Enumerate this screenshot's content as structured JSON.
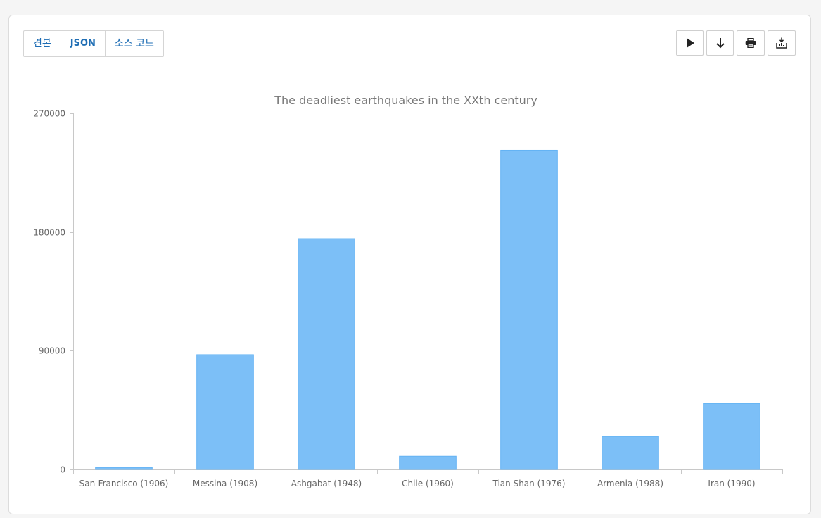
{
  "toolbar": {
    "tabs": [
      {
        "label": "견본"
      },
      {
        "label": "JSON"
      },
      {
        "label": "소스 코드"
      }
    ],
    "actions": [
      {
        "icon": "play-icon"
      },
      {
        "icon": "arrow-down-icon"
      },
      {
        "icon": "print-icon"
      },
      {
        "icon": "download-chart-icon"
      }
    ]
  },
  "colors": {
    "bar_fill": "#7cbff7",
    "bar_stroke": "#64b3f4",
    "axis": "#c8c8c8",
    "tick_text": "#666666",
    "title_text": "#777777",
    "tab_text": "#1e6db4"
  },
  "chart_data": {
    "type": "bar",
    "title": "The deadliest earthquakes in the XXth century",
    "xlabel": "",
    "ylabel": "",
    "categories": [
      "San-Francisco (1906)",
      "Messina (1908)",
      "Ashgabat (1948)",
      "Chile (1960)",
      "Tian Shan (1976)",
      "Armenia (1988)",
      "Iran (1990)"
    ],
    "values": [
      1500,
      87000,
      175000,
      10000,
      242000,
      25000,
      50000
    ],
    "ylim": [
      0,
      270000
    ],
    "yticks": [
      "0",
      "90000",
      "180000",
      "270000"
    ],
    "grid": false,
    "legend": "none"
  }
}
